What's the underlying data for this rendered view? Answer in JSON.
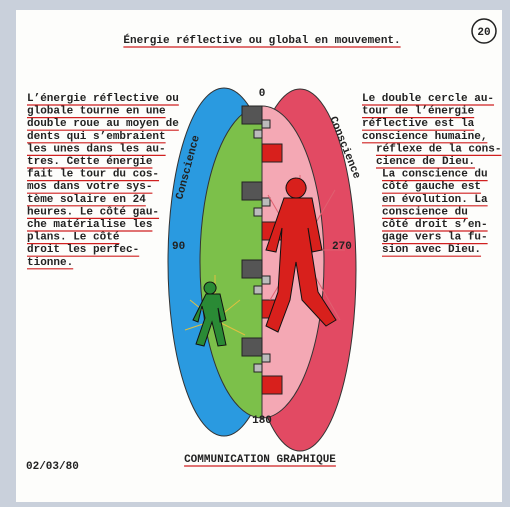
{
  "page_number": "20",
  "title": "Énergie réflective ou global en mouvement.",
  "left_text": [
    "L’énergie réflective ou",
    "globale tourne en une",
    "double roue au moyen de",
    "dents qui s’embraient",
    "les unes dans les au-",
    "tres. Cette énergie",
    "fait le tour du cos-",
    "mos dans votre sys-",
    "tème solaire en 24",
    "heures. Le côté gau-",
    "che matérialise les",
    "plans. Le côté",
    "droit les perfec-",
    "tionne."
  ],
  "right_text": [
    "Le double cercle au-",
    "tour de l’énergie",
    "réflective est la",
    "conscience humaine,",
    "réflexe de la cons-",
    "cience de Dieu.",
    "La conscience du",
    "côté gauche est",
    "en évolution. La",
    "conscience du",
    "côté droit s’en-",
    "gage vers la fu-",
    "sion avec Dieu."
  ],
  "diagram": {
    "left_label": "Conscience",
    "right_label": "Conscience",
    "top": "0",
    "left": "90",
    "right": "270",
    "bottom": "180"
  },
  "footer": "COMMUNICATION GRAPHIQUE",
  "date": "02/03/80"
}
